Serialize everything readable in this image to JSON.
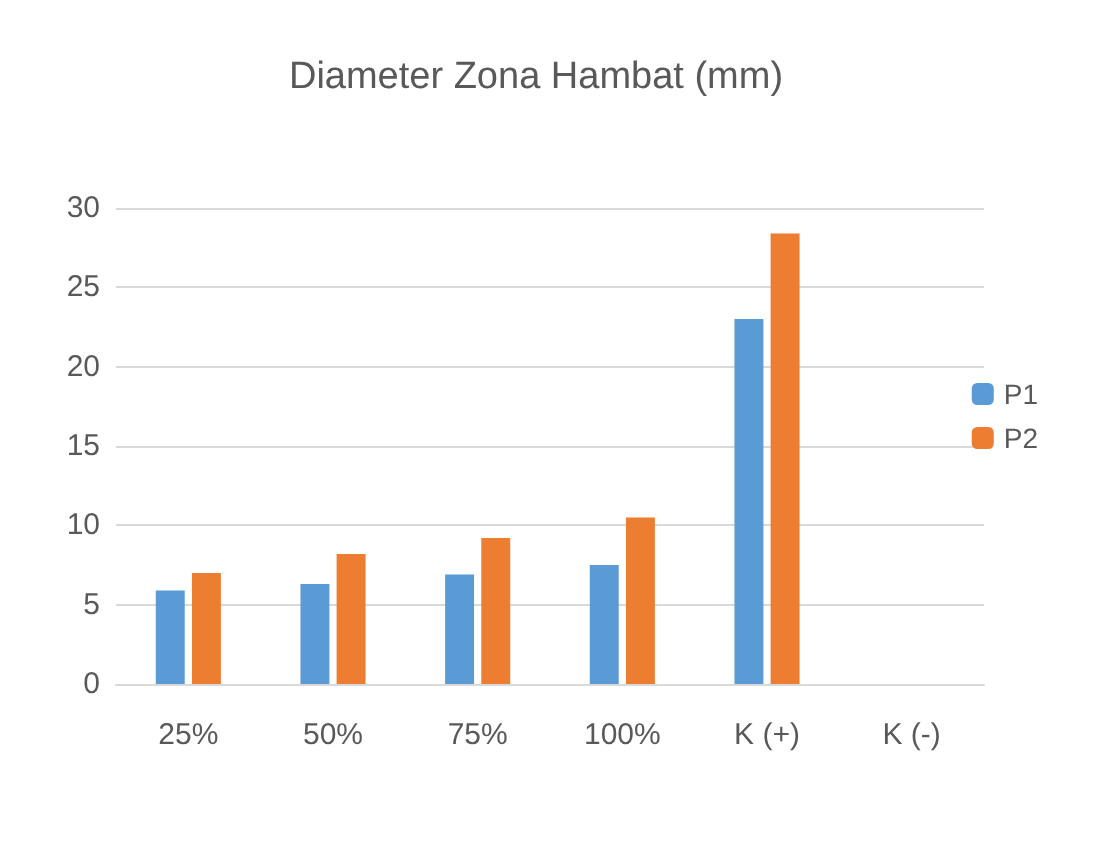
{
  "chart_data": {
    "type": "bar",
    "title": "Diameter Zona Hambat (mm)",
    "categories": [
      "25%",
      "50%",
      "75%",
      "100%",
      "K (+)",
      "K (-)"
    ],
    "series": [
      {
        "name": "P1",
        "color": "#5b9bd5",
        "values": [
          5.9,
          6.3,
          6.9,
          7.5,
          23.0,
          0
        ]
      },
      {
        "name": "P2",
        "color": "#ed7d31",
        "values": [
          7.0,
          8.2,
          9.2,
          10.5,
          28.4,
          0
        ]
      }
    ],
    "ylim": [
      0,
      30
    ],
    "yticks": [
      0,
      5,
      10,
      15,
      20,
      25,
      30
    ],
    "grid": "y",
    "legend": "right"
  }
}
